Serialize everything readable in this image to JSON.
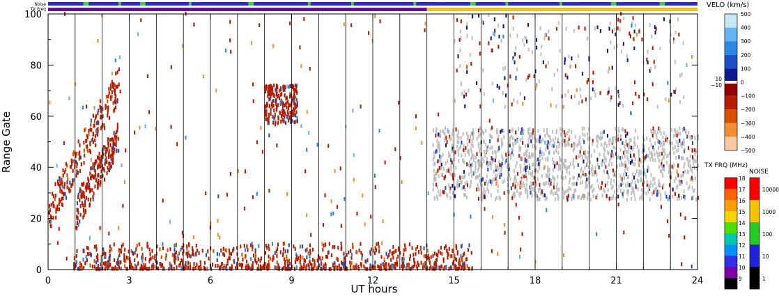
{
  "chart_data": {
    "type": "heatmap",
    "xlabel": "UT hours",
    "ylabel": "Range Gate",
    "xlim": [
      0,
      24
    ],
    "ylim": [
      0,
      100
    ],
    "x_ticks": [
      "0",
      "3",
      "6",
      "9",
      "12",
      "15",
      "18",
      "21",
      "24"
    ],
    "y_ticks": [
      "0",
      "20",
      "40",
      "60",
      "80",
      "100"
    ],
    "hour_lines": [
      1,
      2,
      3,
      4,
      5,
      6,
      7,
      8,
      9,
      10,
      11,
      12,
      13,
      14,
      15,
      16,
      17,
      18,
      19,
      20,
      21,
      22,
      23
    ],
    "status_bars": [
      {
        "name": "Noise",
        "colors": {
          "base": "#2828e0",
          "alt": "#38d838"
        },
        "alt_hours": [
          [
            1.3,
            1.5
          ],
          [
            2.6,
            2.7
          ],
          [
            3.4,
            3.6
          ],
          [
            5.2,
            5.3
          ],
          [
            7.4,
            7.6
          ],
          [
            9.6,
            9.7
          ],
          [
            11.2,
            11.3
          ],
          [
            13.5,
            13.6
          ],
          [
            15.6,
            15.8
          ],
          [
            16.9,
            17.0
          ],
          [
            18.9,
            19.0
          ],
          [
            20.8,
            21.0
          ],
          [
            22.6,
            22.8
          ]
        ]
      },
      {
        "name": "TX Freq",
        "colors": {
          "before": "#6a0aa8",
          "after": "#f4c400"
        },
        "switch_hour": 14.0
      }
    ],
    "velocity_scale": {
      "title": "VELO (km/s)",
      "ticks": [
        "500",
        "400",
        "300",
        "200",
        "100",
        "0",
        "−100",
        "−200",
        "−300",
        "−400",
        "−500"
      ],
      "extra_ticks": [
        "10",
        "−10"
      ],
      "colors": [
        "#c8e8f8",
        "#64b4f0",
        "#2a88e0",
        "#1a50c8",
        "#0a1c90",
        "#ffffff",
        "#900000",
        "#b81c00",
        "#d85000",
        "#f09030",
        "#f8c8a0"
      ]
    },
    "tx_freq_scale": {
      "title": "TX FRQ (MHz)",
      "ticks": [
        "18",
        "17",
        "16",
        "15",
        "14",
        "13",
        "12",
        "11",
        "10",
        "9"
      ],
      "colors": [
        "#ff0000",
        "#ff6000",
        "#ff9e00",
        "#f0d800",
        "#4ce000",
        "#00c8b0",
        "#0090ff",
        "#3030e8",
        "#8000a8",
        "#000000"
      ]
    },
    "noise_scale": {
      "title": "NOISE",
      "ticks": [
        "10000",
        "1000",
        "100",
        "10",
        "1"
      ],
      "colors": [
        "#ff0000",
        "#f4c400",
        "#22cc22",
        "#2222dd",
        "#000000"
      ]
    },
    "ground_scatter_color": "#c0c0c0",
    "features": [
      {
        "name": "low-range echoes",
        "hours": [
          0.9,
          15.7
        ],
        "gates": [
          0,
          10
        ],
        "velocity": -150
      },
      {
        "name": "early arc 1",
        "hours": [
          0.0,
          2.6
        ],
        "gates": [
          22,
          72
        ],
        "velocity": -150
      },
      {
        "name": "early arc 2",
        "hours": [
          1.0,
          2.6
        ],
        "gates": [
          22,
          52
        ],
        "velocity": -130
      },
      {
        "name": "echo near 08-09 UT",
        "hours": [
          8.0,
          9.2
        ],
        "gates": [
          57,
          72
        ],
        "velocity": -120
      },
      {
        "name": "ground scatter band",
        "hours": [
          14.2,
          24.0
        ],
        "gates": [
          27,
          55
        ],
        "velocity": 0
      },
      {
        "name": "upper scatter",
        "hours": [
          15.0,
          23.5
        ],
        "gates": [
          63,
          100
        ],
        "velocity": -50
      }
    ]
  }
}
